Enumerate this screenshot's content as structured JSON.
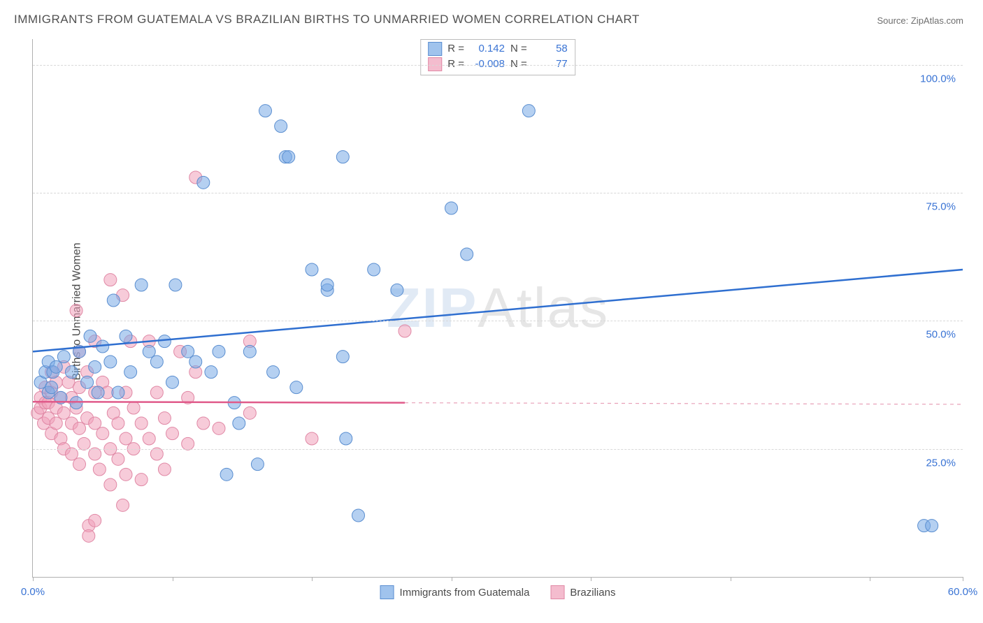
{
  "title": "IMMIGRANTS FROM GUATEMALA VS BRAZILIAN BIRTHS TO UNMARRIED WOMEN CORRELATION CHART",
  "source": "Source: ZipAtlas.com",
  "ylabel": "Births to Unmarried Women",
  "watermark_a": "ZIP",
  "watermark_b": "Atlas",
  "chart": {
    "type": "scatter",
    "background_color": "#ffffff",
    "grid_color": "#d8d8d8",
    "axis_color": "#b0b0b0",
    "label_color": "#3973d4",
    "text_color": "#4a4a4a",
    "marker_radius": 9,
    "xlim": [
      0,
      60
    ],
    "ylim": [
      0,
      105
    ],
    "xtick_positions": [
      0,
      9,
      18,
      27,
      36,
      45,
      54,
      60
    ],
    "xtick_labels": {
      "0": "0.0%",
      "60": "60.0%"
    },
    "ytick_positions": [
      25,
      50,
      75,
      100
    ],
    "ytick_labels": {
      "25": "25.0%",
      "50": "50.0%",
      "75": "75.0%",
      "100": "100.0%"
    },
    "series": [
      {
        "name": "Immigrants from Guatemala",
        "color_fill": "rgba(120,170,230,0.55)",
        "color_stroke": "#5a8ed0",
        "R": "0.142",
        "N": "58",
        "trend": {
          "x1": 0,
          "y1": 44,
          "x2": 60,
          "y2": 60,
          "style": "solid",
          "width": 2.5
        },
        "points": [
          [
            0.5,
            38
          ],
          [
            0.8,
            40
          ],
          [
            1.0,
            36
          ],
          [
            1.0,
            42
          ],
          [
            1.2,
            37
          ],
          [
            1.3,
            40
          ],
          [
            1.5,
            41
          ],
          [
            1.8,
            35
          ],
          [
            2.0,
            43
          ],
          [
            2.5,
            40
          ],
          [
            2.8,
            34
          ],
          [
            3.0,
            44
          ],
          [
            3.5,
            38
          ],
          [
            3.7,
            47
          ],
          [
            4.0,
            41
          ],
          [
            4.2,
            36
          ],
          [
            4.5,
            45
          ],
          [
            5.0,
            42
          ],
          [
            5.2,
            54
          ],
          [
            5.5,
            36
          ],
          [
            6.0,
            47
          ],
          [
            6.3,
            40
          ],
          [
            7.0,
            57
          ],
          [
            7.5,
            44
          ],
          [
            8.0,
            42
          ],
          [
            8.5,
            46
          ],
          [
            9.0,
            38
          ],
          [
            9.2,
            57
          ],
          [
            10.0,
            44
          ],
          [
            10.5,
            42
          ],
          [
            11.0,
            77
          ],
          [
            11.5,
            40
          ],
          [
            12.0,
            44
          ],
          [
            12.5,
            20
          ],
          [
            13.0,
            34
          ],
          [
            13.3,
            30
          ],
          [
            14.0,
            44
          ],
          [
            14.5,
            22
          ],
          [
            15.0,
            91
          ],
          [
            15.5,
            40
          ],
          [
            16.0,
            88
          ],
          [
            16.3,
            82
          ],
          [
            16.5,
            82
          ],
          [
            17.0,
            37
          ],
          [
            18.0,
            60
          ],
          [
            19.0,
            56
          ],
          [
            19.0,
            57
          ],
          [
            20.0,
            43
          ],
          [
            20.0,
            82
          ],
          [
            20.2,
            27
          ],
          [
            21.0,
            12
          ],
          [
            22.0,
            60
          ],
          [
            23.5,
            56
          ],
          [
            27.0,
            72
          ],
          [
            28.0,
            63
          ],
          [
            32.0,
            91
          ],
          [
            57.5,
            10
          ],
          [
            58.0,
            10
          ]
        ]
      },
      {
        "name": "Brazilians",
        "color_fill": "rgba(240,160,185,0.55)",
        "color_stroke": "#e088a5",
        "R": "-0.008",
        "N": "77",
        "trend_solid": {
          "x1": 0,
          "y1": 34.2,
          "x2": 24,
          "y2": 34,
          "width": 2.5
        },
        "trend_dashed": {
          "x1": 24,
          "y1": 34,
          "x2": 60,
          "y2": 33.7,
          "width": 1.2
        },
        "points": [
          [
            0.3,
            32
          ],
          [
            0.5,
            33
          ],
          [
            0.5,
            35
          ],
          [
            0.7,
            30
          ],
          [
            0.8,
            34
          ],
          [
            0.8,
            37
          ],
          [
            1.0,
            31
          ],
          [
            1.0,
            34
          ],
          [
            1.2,
            28
          ],
          [
            1.2,
            36
          ],
          [
            1.2,
            40
          ],
          [
            1.5,
            30
          ],
          [
            1.5,
            33
          ],
          [
            1.5,
            38
          ],
          [
            1.8,
            27
          ],
          [
            1.8,
            35
          ],
          [
            2.0,
            25
          ],
          [
            2.0,
            32
          ],
          [
            2.0,
            41
          ],
          [
            2.3,
            38
          ],
          [
            2.5,
            24
          ],
          [
            2.5,
            30
          ],
          [
            2.5,
            35
          ],
          [
            2.8,
            33
          ],
          [
            2.8,
            52
          ],
          [
            3.0,
            22
          ],
          [
            3.0,
            29
          ],
          [
            3.0,
            37
          ],
          [
            3.0,
            44
          ],
          [
            3.3,
            26
          ],
          [
            3.5,
            31
          ],
          [
            3.5,
            40
          ],
          [
            3.6,
            10
          ],
          [
            3.6,
            8
          ],
          [
            4.0,
            11
          ],
          [
            4.0,
            24
          ],
          [
            4.0,
            30
          ],
          [
            4.0,
            36
          ],
          [
            4.0,
            46
          ],
          [
            4.3,
            21
          ],
          [
            4.5,
            28
          ],
          [
            4.5,
            38
          ],
          [
            4.8,
            36
          ],
          [
            5.0,
            18
          ],
          [
            5.0,
            25
          ],
          [
            5.0,
            58
          ],
          [
            5.2,
            32
          ],
          [
            5.5,
            23
          ],
          [
            5.5,
            30
          ],
          [
            5.8,
            14
          ],
          [
            5.8,
            55
          ],
          [
            6.0,
            20
          ],
          [
            6.0,
            27
          ],
          [
            6.0,
            36
          ],
          [
            6.3,
            46
          ],
          [
            6.5,
            25
          ],
          [
            6.5,
            33
          ],
          [
            7.0,
            19
          ],
          [
            7.0,
            30
          ],
          [
            7.5,
            27
          ],
          [
            7.5,
            46
          ],
          [
            8.0,
            24
          ],
          [
            8.0,
            36
          ],
          [
            8.5,
            21
          ],
          [
            8.5,
            31
          ],
          [
            9.0,
            28
          ],
          [
            9.5,
            44
          ],
          [
            10.0,
            26
          ],
          [
            10.0,
            35
          ],
          [
            10.5,
            40
          ],
          [
            10.5,
            78
          ],
          [
            11.0,
            30
          ],
          [
            12.0,
            29
          ],
          [
            14.0,
            32
          ],
          [
            14.0,
            46
          ],
          [
            18.0,
            27
          ],
          [
            24.0,
            48
          ]
        ]
      }
    ],
    "legend_top": {
      "R_label": "R =",
      "N_label": "N ="
    },
    "legend_bottom": [
      {
        "swatch": "blue",
        "label": "Immigrants from Guatemala"
      },
      {
        "swatch": "pink",
        "label": "Brazilians"
      }
    ]
  }
}
